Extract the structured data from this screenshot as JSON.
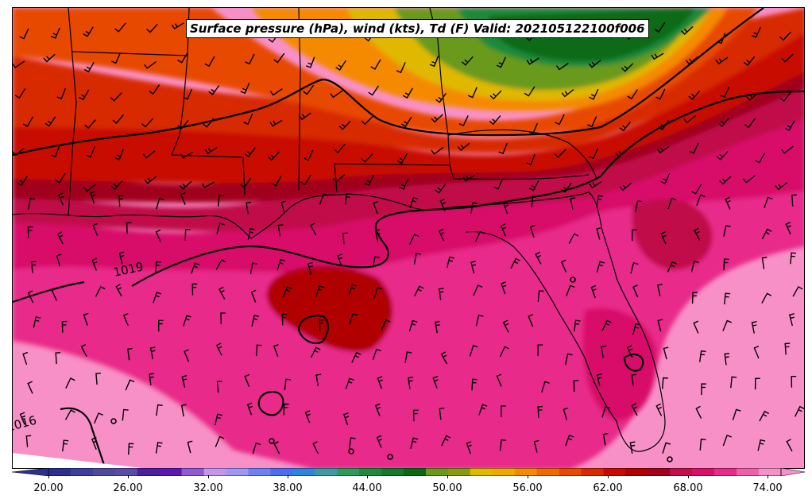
{
  "title": "Surface pressure (hPa), wind (kts), Td (F) Valid: 202105122100f006",
  "isobar_labels": [
    "1019",
    "1016"
  ],
  "colorbar": {
    "tick_labels": [
      "20.00",
      "26.00",
      "32.00",
      "38.00",
      "44.00",
      "50.00",
      "56.00",
      "62.00",
      "68.00",
      "74.00"
    ],
    "colors": [
      "#2b2f8f",
      "#3b3f9f",
      "#4e4c9c",
      "#5c4ba8",
      "#4a1f9e",
      "#5a18b0",
      "#8c5ad6",
      "#c197f0",
      "#9f97f5",
      "#6d82f5",
      "#4b6ef0",
      "#2f84e0",
      "#3c9aa0",
      "#2e9a5a",
      "#1f8a3a",
      "#127a2a",
      "#0a6a12",
      "#6a9a1a",
      "#8a9a10",
      "#e0b800",
      "#f0a800",
      "#f58a00",
      "#f06a00",
      "#e84a00",
      "#d82a00",
      "#c80a00",
      "#b00000",
      "#a0001a",
      "#c0104a",
      "#d8106a",
      "#e82a8a",
      "#f060a8",
      "#f890c8"
    ]
  },
  "field_colors": {
    "green_dark": "#0a6a12",
    "green": "#1f8a3a",
    "olive": "#6a9a1a",
    "yellow": "#e0b800",
    "orange": "#f58a00",
    "orange_red": "#e84a00",
    "red": "#d82a00",
    "dark_red": "#c80a00",
    "crimson": "#b00000",
    "maroon": "#a0001a",
    "deep_pink": "#c0104a",
    "magenta": "#d8106a",
    "pink": "#e82a8a",
    "light_pink": "#f060a8",
    "pale_pink": "#f890c8"
  }
}
